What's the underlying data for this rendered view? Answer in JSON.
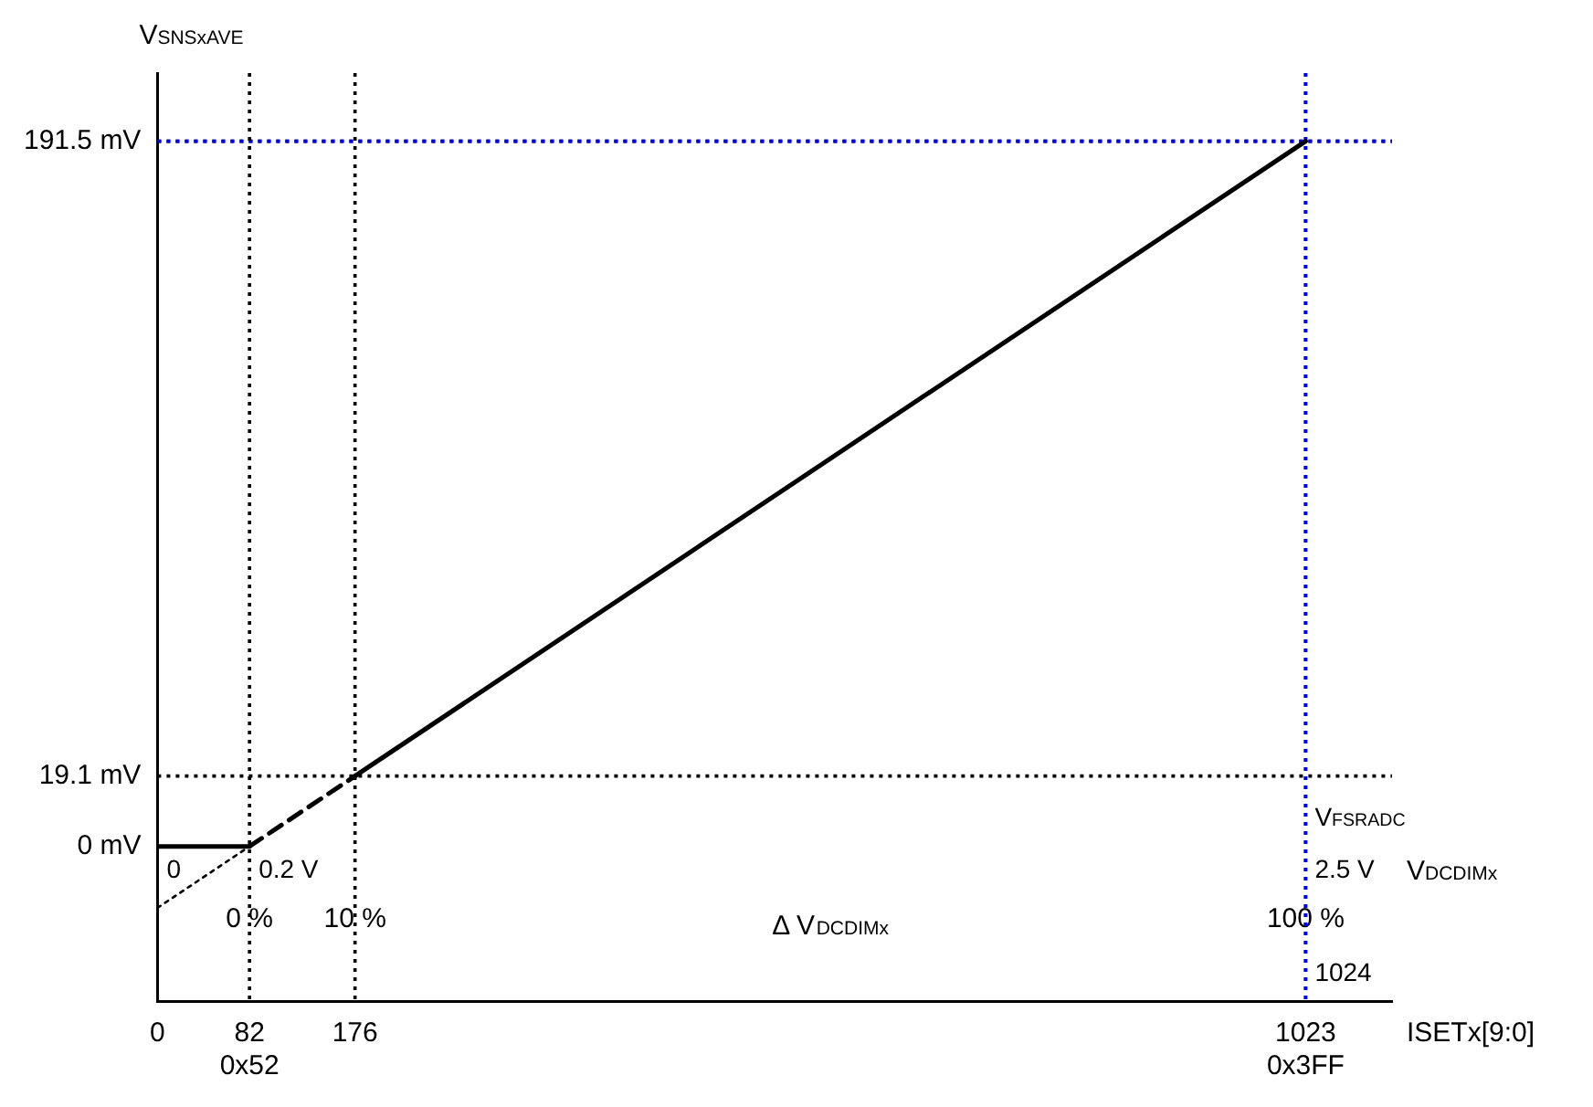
{
  "chart_data": {
    "type": "line",
    "ylabel": "V$_{SNSxAVE}$",
    "xlabel": "ISETx[9:0]",
    "x2label": "V$_{DCDIMx}$",
    "xlim": [
      0,
      1100
    ],
    "xticks": [
      0,
      {
        "value": 82,
        "label": "82\n0x52"
      },
      176,
      {
        "value": 1023,
        "label": "1023\n0x3FF"
      }
    ],
    "x2lim": [
      -8.714,
      108.18
    ],
    "x2ticks": [
      {
        "value": 0,
        "label": "0 %"
      },
      {
        "value": 10,
        "label": "10 %"
      },
      {
        "value": 100,
        "label": "100 %"
      }
    ],
    "ylim": [
      -42,
      210
    ],
    "yticks": [
      {
        "value": 0,
        "label": "0 mV"
      },
      {
        "value": 19.1,
        "label": "19.1 mV"
      },
      {
        "value": 191.5,
        "label": "191.5 mV"
      }
    ],
    "grid": false,
    "legend": false,
    "marker": "none",
    "series": [
      {
        "color": "#000000",
        "line_style": "solid",
        "x": [
          0,
          82
        ],
        "values": [
          0,
          0
        ]
      },
      {
        "color": "#000000",
        "line_style": "dashed",
        "x": [
          82,
          176
        ],
        "values": [
          0,
          19.1
        ]
      },
      {
        "color": "#000000",
        "line_style": "solid",
        "x": [
          176,
          1023
        ],
        "values": [
          19.1,
          191.5
        ]
      },
      {
        "color": "#000000",
        "line_style": "dotted",
        "x": [
          0,
          82
        ],
        "values": [
          -16.7,
          0
        ]
      }
    ],
    "ref_lines": [
      {
        "axis": "y",
        "value": 191.5,
        "color": "#000000",
        "line_style": "dotted"
      },
      {
        "axis": "y",
        "value": 191.5,
        "color": "#0000ff",
        "line_style": "dotted"
      },
      {
        "axis": "y",
        "value": 19.1,
        "color": "#000000",
        "line_style": "dotted"
      },
      {
        "axis": "x",
        "value": 82,
        "color": "#000000",
        "line_style": "dotted"
      },
      {
        "axis": "x",
        "value": 176,
        "color": "#000000",
        "line_style": "dotted"
      },
      {
        "axis": "x",
        "value": 1023,
        "color": "#000000",
        "line_style": "dotted"
      },
      {
        "axis": "x",
        "value": 1023,
        "color": "#0000ff",
        "line_style": "dotted"
      }
    ],
    "annotations": [
      {
        "text": "0",
        "x": 0,
        "y": 0
      },
      {
        "text": "0.2 V",
        "x": 82,
        "y": 0
      },
      {
        "text": "2.5 V",
        "x": 1023,
        "y": 0
      },
      {
        "text": "V$_{FSRADC}$",
        "x": 1023,
        "y": 14
      },
      "Δ V$_{DCDIMx}$",
      {
        "text": "1024",
        "x": 1023,
        "y": -28
      }
    ]
  }
}
